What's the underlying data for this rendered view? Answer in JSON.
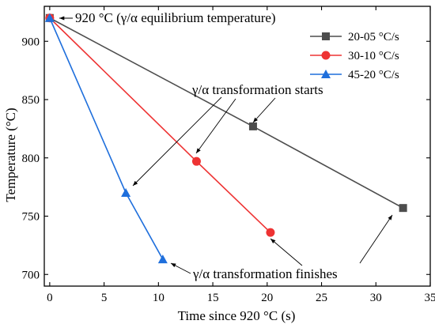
{
  "chart_data": {
    "type": "line",
    "xlabel": "Time since 920 °C (s)",
    "ylabel": "Temperature (°C)",
    "xlim": [
      -0.5,
      35
    ],
    "ylim": [
      690,
      930
    ],
    "xticks": [
      0,
      5,
      10,
      15,
      20,
      25,
      30,
      35
    ],
    "yticks": [
      700,
      750,
      800,
      850,
      900
    ],
    "legend_position": "top-right",
    "series": [
      {
        "name": "20-05 °C/s",
        "color": "#4d4d4d",
        "marker": "square",
        "x": [
          0,
          18.7,
          32.5
        ],
        "y": [
          920,
          827,
          757
        ]
      },
      {
        "name": "30-10 °C/s",
        "color": "#ee3333",
        "marker": "circle",
        "x": [
          0,
          13.5,
          20.3
        ],
        "y": [
          920,
          797,
          736
        ]
      },
      {
        "name": "45-20 °C/s",
        "color": "#1f6fdc",
        "marker": "triangle",
        "x": [
          0,
          7.0,
          10.4
        ],
        "y": [
          920,
          770,
          713
        ]
      }
    ],
    "annotations": {
      "equilibrium": "920 °C (γ/α equilibrium temperature)",
      "starts": "γ/α transformation starts",
      "finishes": "γ/α transformation finishes"
    }
  }
}
